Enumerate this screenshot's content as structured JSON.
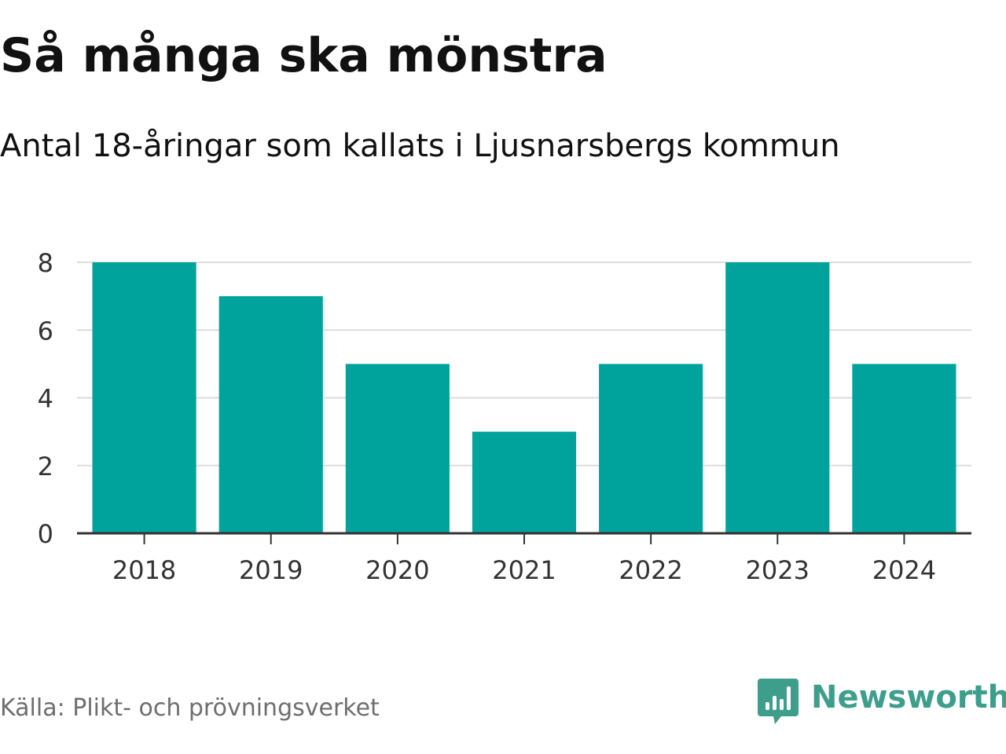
{
  "header": {
    "title": "Så många ska mönstra",
    "subtitle": "Antal 18-åringar som kallats i Ljusnarsbergs kommun"
  },
  "footer": {
    "source": "Källa: Plikt- och prövningsverket",
    "logo_text": "Newsworthy"
  },
  "colors": {
    "bar": "#00a39b",
    "grid": "#dddddd",
    "axis": "#333333",
    "text": "#333333",
    "brand": "#3d9e8c"
  },
  "chart_data": {
    "type": "bar",
    "title": "Så många ska mönstra",
    "subtitle": "Antal 18-åringar som kallats i Ljusnarsbergs kommun",
    "xlabel": "",
    "ylabel": "",
    "categories": [
      "2018",
      "2019",
      "2020",
      "2021",
      "2022",
      "2023",
      "2024"
    ],
    "values": [
      8,
      7,
      5,
      3,
      5,
      8,
      5
    ],
    "ylim": [
      0,
      8
    ],
    "yticks": [
      0,
      2,
      4,
      6,
      8
    ],
    "grid": true,
    "legend": "none"
  }
}
